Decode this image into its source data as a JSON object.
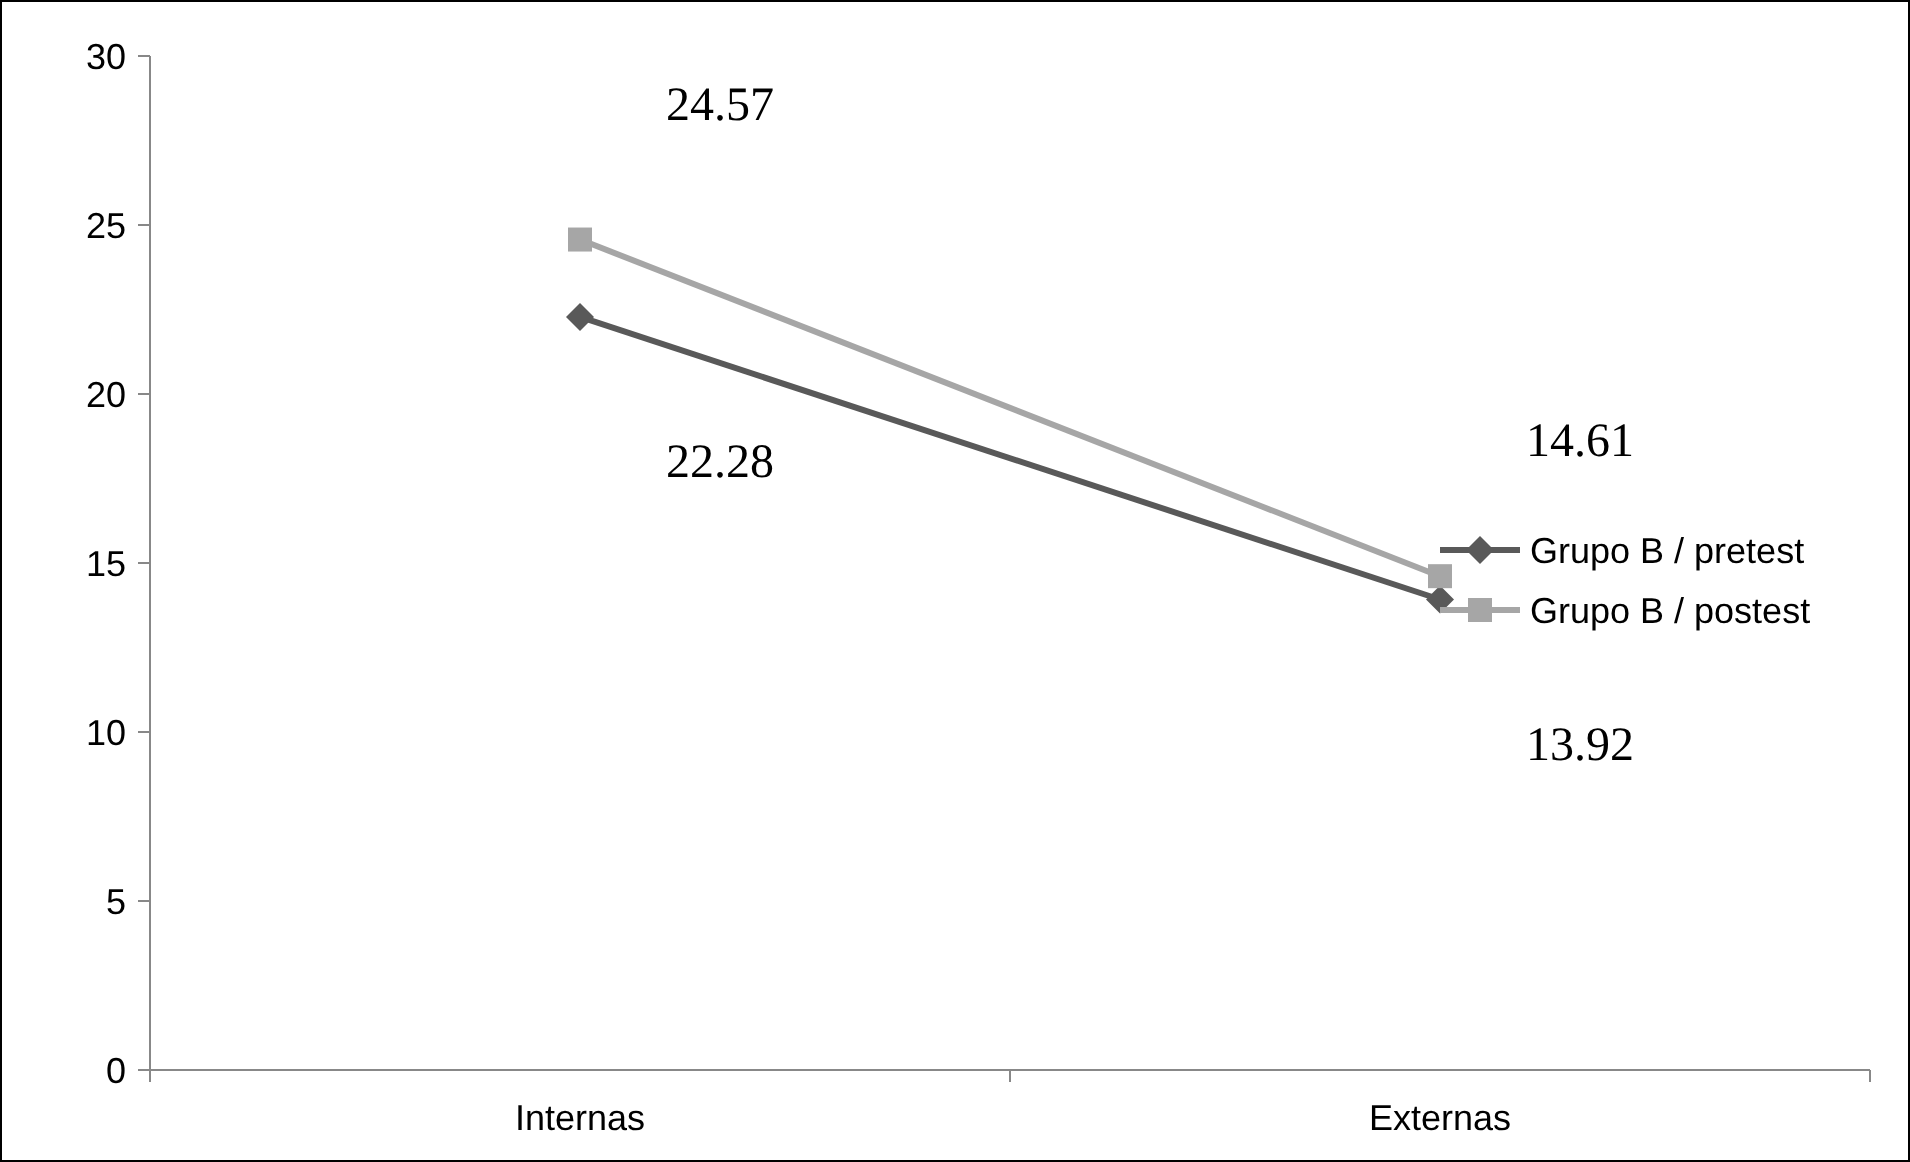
{
  "chart_data": {
    "type": "line",
    "categories": [
      "Internas",
      "Externas"
    ],
    "series": [
      {
        "name": "Grupo B / pretest",
        "color": "#595959",
        "values": [
          22.28,
          13.92
        ],
        "marker": "diamond"
      },
      {
        "name": "Grupo B / postest",
        "color": "#a6a6a6",
        "values": [
          24.57,
          14.61
        ],
        "marker": "square"
      }
    ],
    "ylim": [
      0,
      30
    ],
    "yticks": [
      0,
      5,
      10,
      15,
      20,
      25,
      30
    ],
    "grid": false,
    "legend": "right",
    "data_labels": true
  }
}
